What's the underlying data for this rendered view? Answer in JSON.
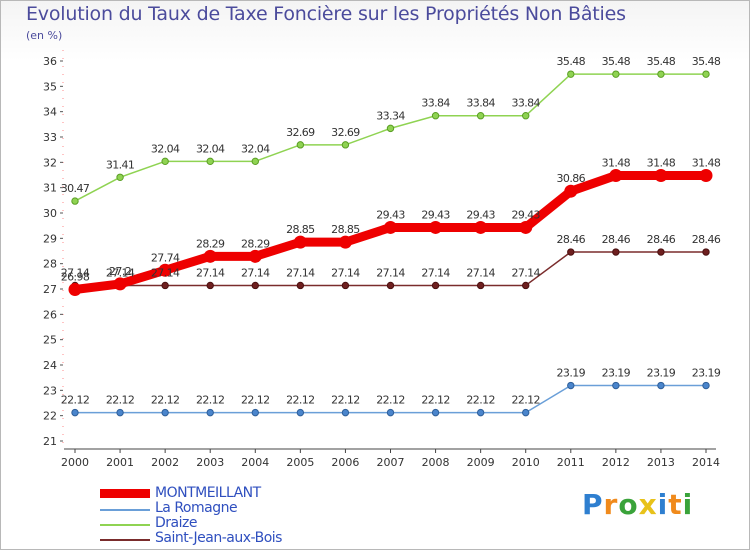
{
  "chart_data": {
    "type": "line",
    "title": "Evolution du Taux de Taxe Foncière sur les Propriétés Non Bâties",
    "ylabel": "(en %)",
    "xlabel": "",
    "x": [
      "2000",
      "2001",
      "2002",
      "2003",
      "2004",
      "2005",
      "2006",
      "2007",
      "2008",
      "2009",
      "2010",
      "2011",
      "2012",
      "2013",
      "2014"
    ],
    "ylim": [
      21,
      36
    ],
    "yticks": [
      "21",
      "22",
      "23",
      "24",
      "25",
      "26",
      "27",
      "28",
      "29",
      "30",
      "31",
      "32",
      "33",
      "34",
      "35",
      "36"
    ],
    "series": [
      {
        "name": "MONTMEILLANT",
        "color": "#ee0000",
        "values": [
          26.98,
          27.2,
          27.74,
          28.29,
          28.29,
          28.85,
          28.85,
          29.43,
          29.43,
          29.43,
          29.43,
          30.86,
          31.48,
          31.48,
          31.48
        ],
        "labels": [
          "26.98",
          "27.2",
          "27.74",
          "28.29",
          "28.29",
          "28.85",
          "28.85",
          "29.43",
          "29.43",
          "29.43",
          "29.43",
          "30.86",
          "31.48",
          "31.48",
          "31.48"
        ]
      },
      {
        "name": "La Romagne",
        "color": "#6a9fd8",
        "values": [
          22.12,
          22.12,
          22.12,
          22.12,
          22.12,
          22.12,
          22.12,
          22.12,
          22.12,
          22.12,
          22.12,
          23.19,
          23.19,
          23.19,
          23.19
        ],
        "labels": [
          "22.12",
          "22.12",
          "22.12",
          "22.12",
          "22.12",
          "22.12",
          "22.12",
          "22.12",
          "22.12",
          "22.12",
          "22.12",
          "23.19",
          "23.19",
          "23.19",
          "23.19"
        ]
      },
      {
        "name": "Draize",
        "color": "#8fd352",
        "values": [
          30.47,
          31.41,
          32.04,
          32.04,
          32.04,
          32.69,
          32.69,
          33.34,
          33.84,
          33.84,
          33.84,
          35.48,
          35.48,
          35.48,
          35.48
        ],
        "labels": [
          "30.47",
          "31.41",
          "32.04",
          "32.04",
          "32.04",
          "32.69",
          "32.69",
          "33.34",
          "33.84",
          "33.84",
          "33.84",
          "35.48",
          "35.48",
          "35.48",
          "35.48"
        ]
      },
      {
        "name": "Saint-Jean-aux-Bois",
        "color": "#7a2c2c",
        "values": [
          27.14,
          27.14,
          27.14,
          27.14,
          27.14,
          27.14,
          27.14,
          27.14,
          27.14,
          27.14,
          27.14,
          28.46,
          28.46,
          28.46,
          28.46
        ],
        "labels": [
          "27.14",
          "27.14",
          "27.14",
          "27.14",
          "27.14",
          "27.14",
          "27.14",
          "27.14",
          "27.14",
          "27.14",
          "27.14",
          "28.46",
          "28.46",
          "28.46",
          "28.46"
        ]
      }
    ],
    "legend_position": "bottom-left",
    "grid": false
  },
  "logo": {
    "letters": [
      "P",
      "r",
      "o",
      "x",
      "i",
      "t",
      "i"
    ]
  }
}
